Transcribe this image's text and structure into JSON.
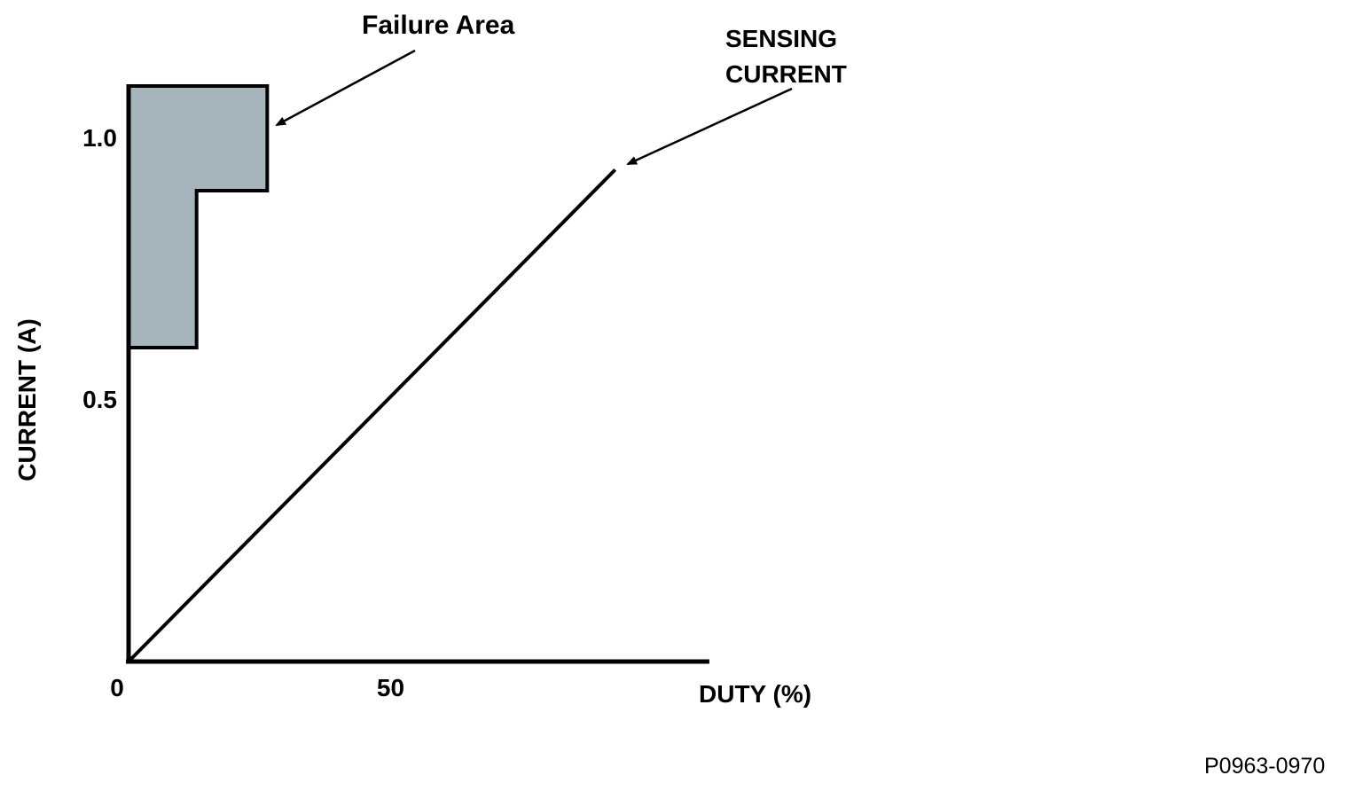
{
  "figure": {
    "part_number": "P0963-0970"
  },
  "labels": {
    "failure_area": "Failure Area",
    "sensing_current": "SENSING CURRENT",
    "xlabel": "DUTY (%)",
    "ylabel": "CURRENT (A)",
    "tick_y_10": "1.0",
    "tick_y_05": "0.5",
    "tick_x_0": "0",
    "tick_x_50": "50"
  },
  "chart_data": {
    "type": "line",
    "title": "",
    "xlabel": "DUTY (%)",
    "ylabel": "CURRENT (A)",
    "xlim": [
      0,
      111
    ],
    "ylim": [
      0,
      1.1
    ],
    "grid": false,
    "legend": "none",
    "x_ticks": [
      {
        "value": 0,
        "label": "0"
      },
      {
        "value": 50,
        "label": "50"
      }
    ],
    "y_ticks": [
      {
        "value": 0.5,
        "label": "0.5"
      },
      {
        "value": 1.0,
        "label": "1.0"
      }
    ],
    "series": [
      {
        "name": "SENSING CURRENT",
        "type": "line",
        "color": "#000000",
        "points": [
          [
            0,
            0
          ],
          [
            93,
            0.94
          ]
        ]
      }
    ],
    "regions": [
      {
        "name": "Failure Area",
        "fill": "#a6b5bb",
        "stroke": "#000000",
        "polygon": [
          [
            0,
            0.6
          ],
          [
            13,
            0.6
          ],
          [
            13,
            0.9
          ],
          [
            26.5,
            0.9
          ],
          [
            26.5,
            1.1
          ],
          [
            0,
            1.1
          ]
        ]
      }
    ],
    "annotations": [
      {
        "text": "Failure Area",
        "points_to": "failure area region"
      },
      {
        "text": "SENSING CURRENT",
        "points_to": "sensing current line"
      }
    ]
  }
}
